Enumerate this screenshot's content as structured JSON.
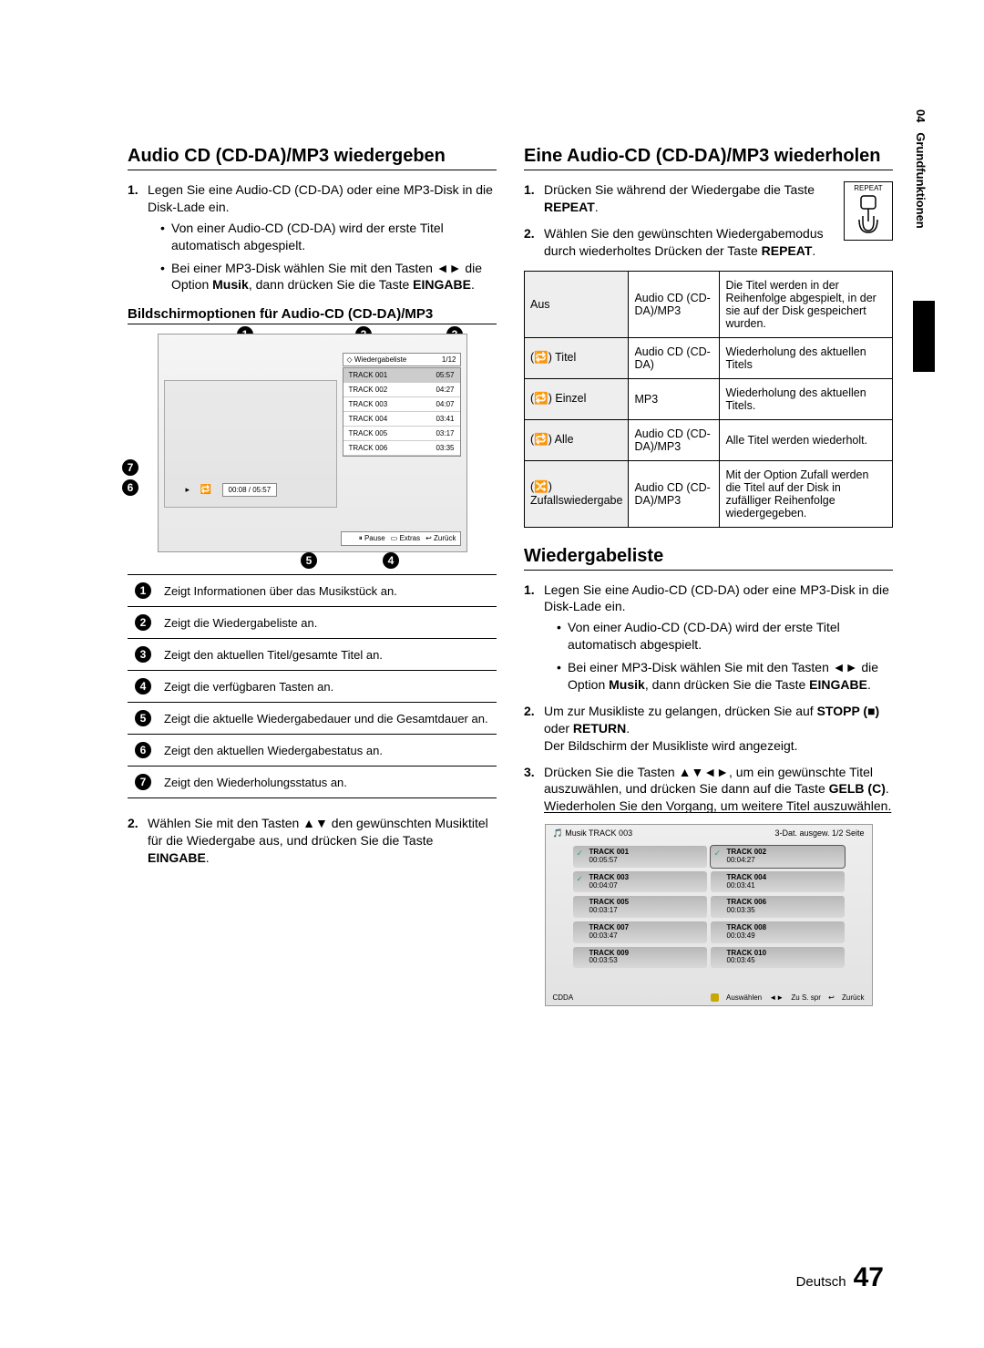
{
  "side_tab": {
    "chapter": "04",
    "title": "Grundfunktionen"
  },
  "left": {
    "h2": "Audio CD (CD-DA)/MP3 wiedergeben",
    "step1_num": "1.",
    "step1": "Legen Sie eine Audio-CD (CD-DA) oder eine MP3-Disk in die Disk-Lade ein.",
    "step1_b1": "Von einer Audio-CD (CD-DA) wird der erste Titel automatisch abgespielt.",
    "step1_b2_a": "Bei einer MP3-Disk wählen Sie mit den Tasten ◄► die Option ",
    "step1_b2_musik": "Musik",
    "step1_b2_b": ", dann drücken Sie die Taste ",
    "step1_b2_eingabe": "EINGABE",
    "step1_b2_c": ".",
    "h3": "Bildschirmoptionen für Audio-CD (CD-DA)/MP3",
    "scr1": {
      "playlist_label": "Wiedergabeliste",
      "playlist_count": "1/12",
      "current_track_top": "TRACK 001",
      "tracks": [
        {
          "name": "TRACK 001",
          "time": "05:57"
        },
        {
          "name": "TRACK 002",
          "time": "04:27"
        },
        {
          "name": "TRACK 003",
          "time": "04:07"
        },
        {
          "name": "TRACK 004",
          "time": "03:41"
        },
        {
          "name": "TRACK 005",
          "time": "03:17"
        },
        {
          "name": "TRACK 006",
          "time": "03:35"
        }
      ],
      "status_time": "00:08 / 05:57",
      "footer_pause": "Pause",
      "footer_extras": "Extras",
      "footer_back": "Zurück"
    },
    "legend": {
      "l1": "Zeigt Informationen über das Musikstück an.",
      "l2": "Zeigt die Wiedergabeliste an.",
      "l3": "Zeigt den aktuellen Titel/gesamte Titel an.",
      "l4": "Zeigt die verfügbaren Tasten an.",
      "l5": "Zeigt die aktuelle Wiedergabedauer und die Gesamtdauer an.",
      "l6": "Zeigt den aktuellen Wiedergabestatus an.",
      "l7": "Zeigt den Wiederholungsstatus an."
    },
    "step2_num": "2.",
    "step2_a": "Wählen Sie mit den Tasten ▲▼ den gewünschten Musiktitel für die Wiedergabe aus, und drücken Sie die Taste ",
    "step2_eingabe": "EINGABE",
    "step2_b": "."
  },
  "right": {
    "h2a": "Eine Audio-CD (CD-DA)/MP3 wiederholen",
    "remote_label": "REPEAT",
    "r1_num": "1.",
    "r1_a": "Drücken Sie während der Wiedergabe die Taste ",
    "r1_repeat": "REPEAT",
    "r1_b": ".",
    "r2_num": "2.",
    "r2_a": "Wählen Sie den gewünschten Wiedergabemodus durch wiederholtes Drücken der Taste ",
    "r2_repeat": "REPEAT",
    "r2_b": ".",
    "table": {
      "rows": [
        {
          "mode": "Aus",
          "disc": "Audio CD (CD-DA)/MP3",
          "desc": "Die Titel werden in der Reihenfolge abgespielt, in der sie auf der Disk gespeichert wurden."
        },
        {
          "mode": "(🔁) Titel",
          "disc": "Audio CD (CD-DA)",
          "desc": "Wiederholung des aktuellen Titels"
        },
        {
          "mode": "(🔁) Einzel",
          "disc": "MP3",
          "desc": "Wiederholung des aktuellen Titels."
        },
        {
          "mode": "(🔁) Alle",
          "disc": "Audio CD (CD-DA)/MP3",
          "desc": "Alle Titel werden wiederholt."
        },
        {
          "mode": "(🔀) Zufallswiedergabe",
          "disc": "Audio CD (CD-DA)/MP3",
          "desc": "Mit der Option Zufall werden die Titel auf der Disk in zufälliger Reihenfolge wiedergegeben."
        }
      ]
    },
    "h2b": "Wiedergabeliste",
    "w1_num": "1.",
    "w1": "Legen Sie eine Audio-CD (CD-DA) oder eine MP3-Disk in die Disk-Lade ein.",
    "w1_b1": "Von einer Audio-CD (CD-DA) wird der erste Titel automatisch abgespielt.",
    "w1_b2_a": "Bei einer MP3-Disk wählen Sie mit den Tasten ◄► die Option ",
    "w1_b2_musik": "Musik",
    "w1_b2_b": ", dann drücken Sie die Taste ",
    "w1_b2_eingabe": "EINGABE",
    "w1_b2_c": ".",
    "w2_num": "2.",
    "w2_a": "Um zur Musikliste zu gelangen, drücken Sie auf ",
    "w2_stopp": "STOPP (■)",
    "w2_b": " oder ",
    "w2_return": "RETURN",
    "w2_c": ".",
    "w2_d": "Der Bildschirm der Musikliste wird angezeigt.",
    "w3_num": "3.",
    "w3_a": "Drücken Sie die Tasten ▲▼◄►, um ein gewünschte Titel auszuwählen, und drücken Sie dann auf die Taste ",
    "w3_gelb": "GELB (C)",
    "w3_b": ".",
    "w3_c": "Wiederholen Sie den Vorgang, um weitere Titel auszuwählen.",
    "scr2": {
      "hdr_left": "Musik   TRACK 003",
      "hdr_right": "3-Dat. ausgew.  1/2 Seite",
      "cells": [
        {
          "name": "TRACK 001",
          "time": "00:05:57",
          "ck": true
        },
        {
          "name": "TRACK 002",
          "time": "00:04:27",
          "ck": true,
          "sel": true
        },
        {
          "name": "TRACK 003",
          "time": "00:04:07",
          "ck": true
        },
        {
          "name": "TRACK 004",
          "time": "00:03:41"
        },
        {
          "name": "TRACK 005",
          "time": "00:03:17"
        },
        {
          "name": "TRACK 006",
          "time": "00:03:35"
        },
        {
          "name": "TRACK 007",
          "time": "00:03:47"
        },
        {
          "name": "TRACK 008",
          "time": "00:03:49"
        },
        {
          "name": "TRACK 009",
          "time": "00:03:53"
        },
        {
          "name": "TRACK 010",
          "time": "00:03:45"
        }
      ],
      "foot_left": "CDDA",
      "foot_sel": "Auswählen",
      "foot_jump": "Zu S. spr",
      "foot_back": "Zurück"
    }
  },
  "footer": {
    "lang": "Deutsch",
    "page": "47"
  }
}
